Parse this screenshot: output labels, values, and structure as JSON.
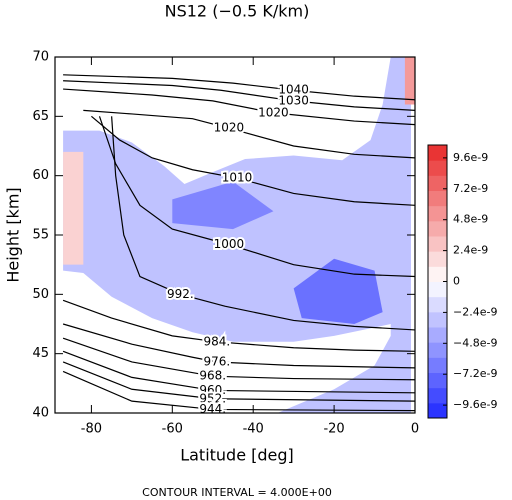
{
  "chart_data": {
    "type": "contour",
    "title": "NS12 (−0.5 K/km)",
    "xlabel": "Latitude [deg]",
    "ylabel": "Height [km]",
    "note": "CONTOUR INTERVAL = 4.000E+00",
    "xlim": [
      -89,
      0
    ],
    "xticks": [
      -80,
      -60,
      -40,
      -20,
      0
    ],
    "ylim": [
      40,
      70
    ],
    "yticks": [
      40,
      45,
      50,
      55,
      60,
      65,
      70
    ],
    "clim": [
      -1.06e-08,
      1.06e-08
    ],
    "cticks": [
      {
        "value": 9.6e-09,
        "label": "9.6e-9"
      },
      {
        "value": 7.2e-09,
        "label": "7.2e-9"
      },
      {
        "value": 4.8e-09,
        "label": "4.8e-9"
      },
      {
        "value": 2.4e-09,
        "label": "2.4e-9"
      },
      0,
      {
        "value": -2.4e-09,
        "label": "−2.4e-9"
      },
      {
        "value": -4.8e-09,
        "label": "−4.8e-9"
      },
      {
        "value": -7.2e-09,
        "label": "−7.2e-9"
      },
      {
        "value": -9.6e-09,
        "label": "−9.6e-9"
      }
    ],
    "shading": [
      {
        "value": -3e-09,
        "x": [
          -87,
          -78,
          -70,
          -62,
          -57,
          -50,
          -42,
          -30,
          -18,
          -11,
          -8,
          -6,
          -1,
          -1,
          -34,
          -20,
          -10,
          -6,
          -6,
          -10,
          -20,
          -30,
          -45,
          -55,
          -65,
          -75,
          -82,
          -87
        ],
        "y": [
          63.8,
          63.8,
          62.8,
          60.8,
          59.3,
          60.3,
          61.4,
          61.7,
          61.3,
          63,
          66,
          70,
          70,
          40,
          40,
          42,
          44,
          46.5,
          47.5,
          47.2,
          46.5,
          46,
          46,
          46.8,
          48,
          49.8,
          51.8,
          52
        ]
      },
      {
        "value": -7e-09,
        "x": [
          -28,
          -15,
          -8,
          -10,
          -20,
          -30
        ],
        "y": [
          48,
          47.5,
          48.5,
          52,
          53,
          50.5
        ]
      },
      {
        "value": -6e-09,
        "x": [
          -60,
          -45,
          -35,
          -45,
          -60
        ],
        "y": [
          58,
          59.5,
          57,
          55.5,
          56
        ]
      },
      {
        "value": 2.2e-09,
        "x": [
          -87,
          -82,
          -82,
          -87
        ],
        "y": [
          52.5,
          52.5,
          62,
          62
        ]
      },
      {
        "value": 5e-09,
        "x": [
          -2.5,
          0,
          0,
          -2.5
        ],
        "y": [
          70,
          70,
          66,
          66
        ]
      }
    ],
    "contours": [
      {
        "level": 1040,
        "label": "1040",
        "x": [
          -87,
          -60,
          -45,
          -30,
          -15,
          0
        ],
        "y": [
          68.5,
          68.2,
          67.8,
          67.2,
          66.7,
          66.4
        ]
      },
      {
        "level": 1030,
        "label": "1030",
        "x": [
          -87,
          -60,
          -48,
          -30,
          -15,
          0
        ],
        "y": [
          68,
          67.6,
          67.2,
          66.3,
          65.8,
          65.5
        ]
      },
      {
        "level": 1020,
        "label": "1020",
        "x": [
          -87,
          -65,
          -50,
          -35,
          -15,
          0
        ],
        "y": [
          67.3,
          66.8,
          66.3,
          65.3,
          64.6,
          64.3
        ]
      },
      {
        "level": 1020,
        "label": "1020",
        "x": [
          -82,
          -70,
          -55,
          -46,
          -30,
          -15,
          0
        ],
        "y": [
          65.5,
          65.2,
          64.8,
          64,
          62.5,
          61.8,
          61.5
        ]
      },
      {
        "level": 1010,
        "label": "1010",
        "x": [
          -80,
          -73,
          -65,
          -55,
          -44,
          -30,
          -15,
          0
        ],
        "y": [
          65,
          63,
          61.5,
          60.5,
          59.8,
          58.5,
          57.8,
          57.5
        ]
      },
      {
        "level": 1000,
        "label": "1000",
        "x": [
          -78,
          -74,
          -68,
          -60,
          -46,
          -30,
          -15,
          0
        ],
        "y": [
          65,
          61,
          57.5,
          55.5,
          54.2,
          52.5,
          51.7,
          51.5
        ]
      },
      {
        "level": 992,
        "label": "992.",
        "x": [
          -75,
          -74,
          -72,
          -68,
          -58,
          -47,
          -30,
          -15,
          0
        ],
        "y": [
          65,
          60,
          55,
          51.5,
          50,
          49,
          47.8,
          47.3,
          47
        ]
      },
      {
        "level": 984,
        "label": "984.",
        "x": [
          -87,
          -75,
          -60,
          -49,
          -30,
          -15,
          0
        ],
        "y": [
          49.5,
          48,
          46.5,
          46,
          45.5,
          45.3,
          45.2
        ]
      },
      {
        "level": 976,
        "label": "976.",
        "x": [
          -87,
          -70,
          -55,
          -49,
          -30,
          0
        ],
        "y": [
          47.5,
          45.8,
          44.7,
          44.3,
          44,
          43.8
        ]
      },
      {
        "level": 968,
        "label": "968.",
        "x": [
          -87,
          -70,
          -50,
          -30,
          0
        ],
        "y": [
          46.3,
          44.3,
          43.1,
          42.9,
          42.8
        ]
      },
      {
        "level": 960,
        "label": "960.",
        "x": [
          -87,
          -70,
          -50,
          0
        ],
        "y": [
          45.2,
          43,
          41.9,
          41.7
        ]
      },
      {
        "level": 952,
        "label": "952.",
        "x": [
          -87,
          -70,
          -50,
          0
        ],
        "y": [
          44.3,
          42,
          41.2,
          41
        ]
      },
      {
        "level": 944,
        "label": "944.",
        "x": [
          -87,
          -70,
          -50,
          0
        ],
        "y": [
          43.5,
          41,
          40.3,
          40.2
        ]
      }
    ]
  }
}
